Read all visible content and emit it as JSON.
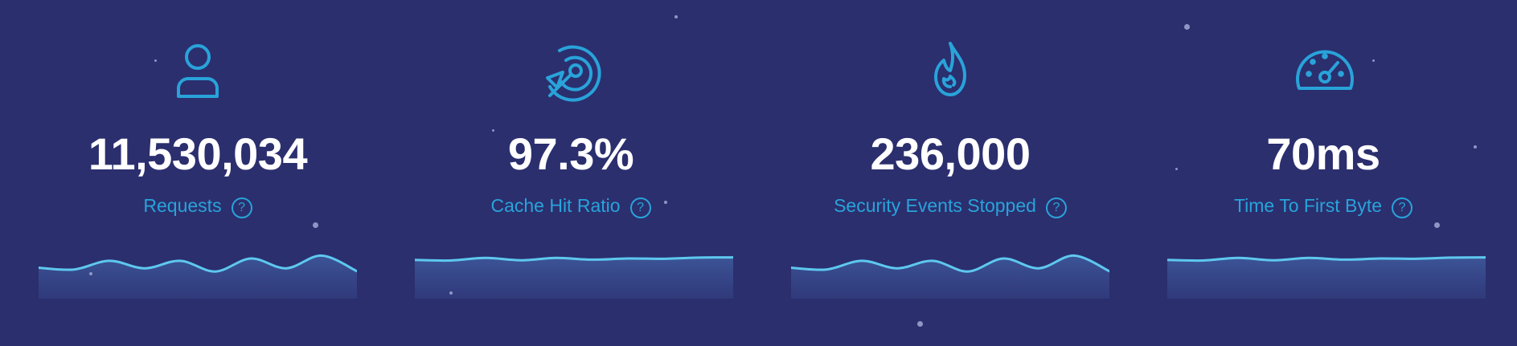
{
  "stats": [
    {
      "value": "11,530,034",
      "label": "Requests",
      "icon": "user-icon",
      "sparkline": [
        0.18,
        0.12,
        0.42,
        0.16,
        0.42,
        0.05,
        0.5,
        0.16,
        0.6,
        0.06
      ]
    },
    {
      "value": "97.3%",
      "label": "Cache Hit Ratio",
      "icon": "target-cursor-icon",
      "sparkline": [
        0.45,
        0.43,
        0.52,
        0.44,
        0.52,
        0.46,
        0.5,
        0.49,
        0.53,
        0.54
      ]
    },
    {
      "value": "236,000",
      "label": "Security Events Stopped",
      "icon": "flame-icon",
      "sparkline": [
        0.18,
        0.12,
        0.42,
        0.16,
        0.42,
        0.05,
        0.5,
        0.16,
        0.6,
        0.06
      ]
    },
    {
      "value": "70ms",
      "label": "Time To First Byte",
      "icon": "speedometer-icon",
      "sparkline": [
        0.45,
        0.43,
        0.52,
        0.44,
        0.52,
        0.46,
        0.5,
        0.49,
        0.53,
        0.54
      ]
    }
  ],
  "help_glyph": "?",
  "colors": {
    "background": "#2b2f6e",
    "accent": "#29a3da",
    "value_text": "#ffffff",
    "sparkline_line": "#5ec8ef"
  }
}
